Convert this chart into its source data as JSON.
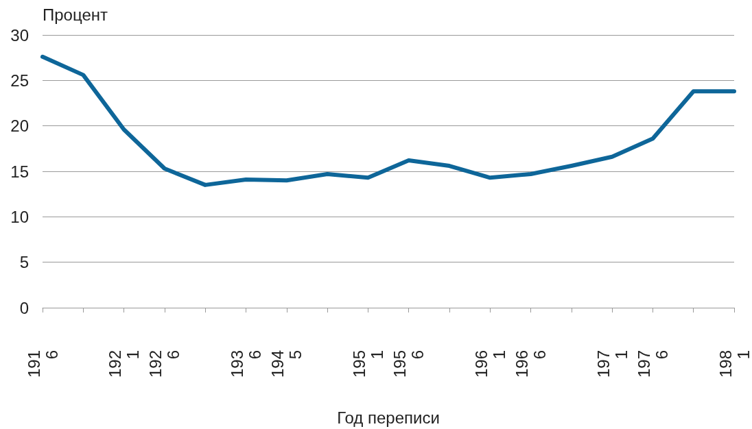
{
  "chart_data": {
    "type": "line",
    "ylabel": "Процент",
    "xlabel": "Год переписи",
    "categories": [
      "1916",
      null,
      "1921",
      "1926",
      null,
      "1936",
      "1945",
      null,
      "1951",
      "1956",
      null,
      "1961",
      "1966",
      null,
      "1971",
      "1976",
      null,
      "1981"
    ],
    "series": [
      {
        "color": "#0e6699",
        "values": [
          27.6,
          25.6,
          19.6,
          15.3,
          13.5,
          14.1,
          14.0,
          14.7,
          14.3,
          16.2,
          15.6,
          14.3,
          14.7,
          15.6,
          16.6,
          18.6,
          23.8,
          23.8
        ]
      }
    ],
    "ylim": [
      0,
      30
    ],
    "yticks": [
      0,
      5,
      10,
      15,
      20,
      25,
      30
    ],
    "grid": "y",
    "marker": "none",
    "line_style": "solid"
  }
}
